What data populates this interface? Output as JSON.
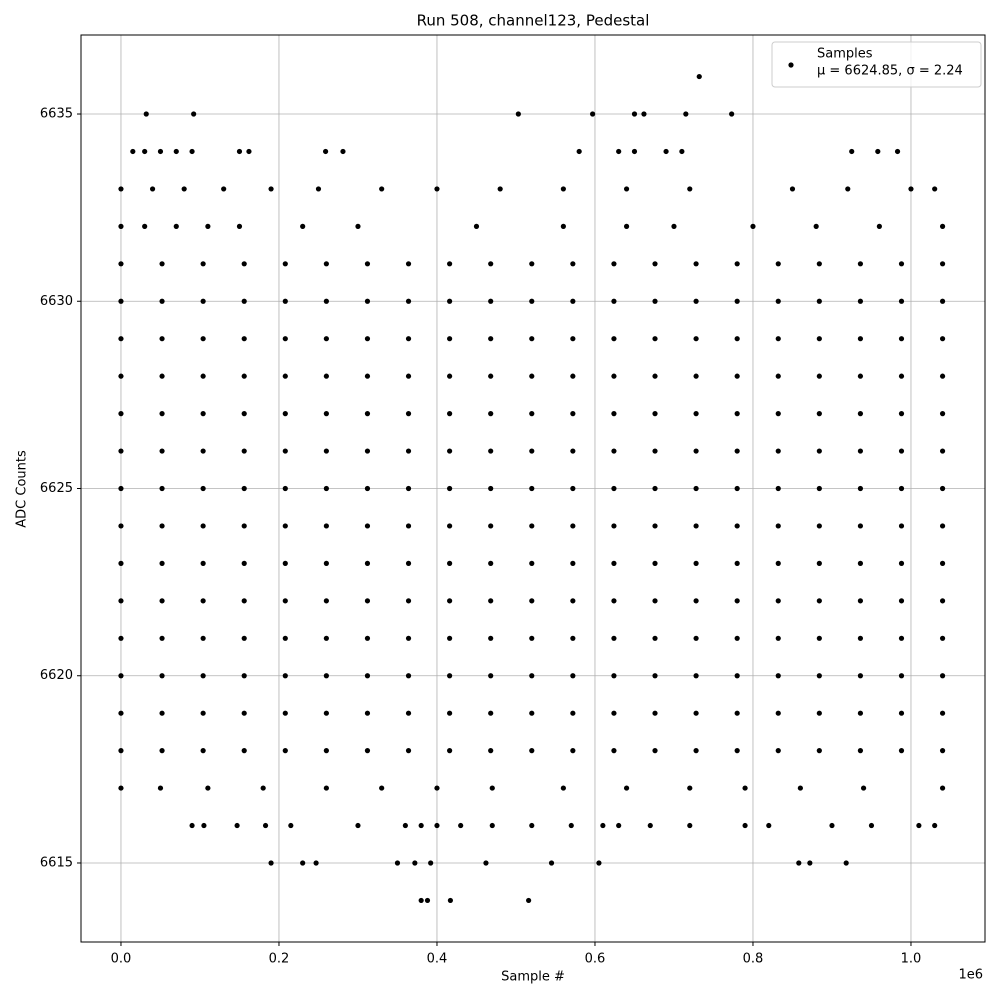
{
  "chart_data": {
    "type": "scatter",
    "title": "Run 508, channel123, Pedestal",
    "x_label": "Sample #",
    "y_label": "ADC Counts",
    "x_offset_label": "1e6",
    "legend_note": "μ = 6624.85, σ = 2.24",
    "legend": "upper right",
    "grid": true,
    "xlim": [
      -50600,
      1093700
    ],
    "ylim": [
      6612.89,
      6637.11
    ],
    "xticks": [
      {
        "value": 0,
        "label": "0.0"
      },
      {
        "value": 200000,
        "label": "0.2"
      },
      {
        "value": 400000,
        "label": "0.4"
      },
      {
        "value": 600000,
        "label": "0.6"
      },
      {
        "value": 800000,
        "label": "0.8"
      },
      {
        "value": 1000000,
        "label": "1.0"
      }
    ],
    "yticks": [
      6615,
      6620,
      6625,
      6630,
      6635
    ],
    "series": [
      {
        "name": "Samples",
        "color": "#000000",
        "x": [
          732000,
          32000,
          92000,
          503000,
          597000,
          650000,
          662000,
          715000,
          773000,
          15000,
          30000,
          50000,
          70000,
          90000,
          150000,
          162000,
          259000,
          281000,
          580000,
          630000,
          650000,
          690000,
          710000,
          925000,
          958000,
          983000,
          0,
          40000,
          80000,
          130000,
          190000,
          250000,
          330000,
          400000,
          480000,
          560000,
          640000,
          720000,
          850000,
          920000,
          1000000,
          1030000,
          0,
          30000,
          70000,
          110000,
          150000,
          230000,
          300000,
          450000,
          560000,
          640000,
          700000,
          800000,
          880000,
          960000,
          1040000,
          0,
          52000,
          104000,
          156000,
          208000,
          260000,
          312000,
          364000,
          416000,
          468000,
          520000,
          572000,
          624000,
          676000,
          728000,
          780000,
          832000,
          884000,
          936000,
          988000,
          1040000,
          0,
          52000,
          104000,
          156000,
          208000,
          260000,
          312000,
          364000,
          416000,
          468000,
          520000,
          572000,
          624000,
          676000,
          728000,
          780000,
          832000,
          884000,
          936000,
          988000,
          1040000,
          0,
          52000,
          104000,
          156000,
          208000,
          260000,
          312000,
          364000,
          416000,
          468000,
          520000,
          572000,
          624000,
          676000,
          728000,
          780000,
          832000,
          884000,
          936000,
          988000,
          1040000,
          0,
          52000,
          104000,
          156000,
          208000,
          260000,
          312000,
          364000,
          416000,
          468000,
          520000,
          572000,
          624000,
          676000,
          728000,
          780000,
          832000,
          884000,
          936000,
          988000,
          1040000,
          0,
          52000,
          104000,
          156000,
          208000,
          260000,
          312000,
          364000,
          416000,
          468000,
          520000,
          572000,
          624000,
          676000,
          728000,
          780000,
          832000,
          884000,
          936000,
          988000,
          1040000,
          0,
          52000,
          104000,
          156000,
          208000,
          260000,
          312000,
          364000,
          416000,
          468000,
          520000,
          572000,
          624000,
          676000,
          728000,
          780000,
          832000,
          884000,
          936000,
          988000,
          1040000,
          0,
          52000,
          104000,
          156000,
          208000,
          260000,
          312000,
          364000,
          416000,
          468000,
          520000,
          572000,
          624000,
          676000,
          728000,
          780000,
          832000,
          884000,
          936000,
          988000,
          1040000,
          0,
          52000,
          104000,
          156000,
          208000,
          260000,
          312000,
          364000,
          416000,
          468000,
          520000,
          572000,
          624000,
          676000,
          728000,
          780000,
          832000,
          884000,
          936000,
          988000,
          1040000,
          0,
          52000,
          104000,
          156000,
          208000,
          260000,
          312000,
          364000,
          416000,
          468000,
          520000,
          572000,
          624000,
          676000,
          728000,
          780000,
          832000,
          884000,
          936000,
          988000,
          1040000,
          0,
          52000,
          104000,
          156000,
          208000,
          260000,
          312000,
          364000,
          416000,
          468000,
          520000,
          572000,
          624000,
          676000,
          728000,
          780000,
          832000,
          884000,
          936000,
          988000,
          1040000,
          0,
          52000,
          104000,
          156000,
          208000,
          260000,
          312000,
          364000,
          416000,
          468000,
          520000,
          572000,
          624000,
          676000,
          728000,
          780000,
          832000,
          884000,
          936000,
          988000,
          1040000,
          0,
          52000,
          104000,
          156000,
          208000,
          260000,
          312000,
          364000,
          416000,
          468000,
          520000,
          572000,
          624000,
          676000,
          728000,
          780000,
          832000,
          884000,
          936000,
          988000,
          1040000,
          0,
          52000,
          104000,
          156000,
          208000,
          260000,
          312000,
          364000,
          416000,
          468000,
          520000,
          572000,
          624000,
          676000,
          728000,
          780000,
          832000,
          884000,
          936000,
          988000,
          1040000,
          0,
          52000,
          104000,
          156000,
          208000,
          260000,
          312000,
          364000,
          416000,
          468000,
          520000,
          572000,
          624000,
          676000,
          728000,
          780000,
          832000,
          884000,
          936000,
          988000,
          1040000,
          0,
          50000,
          110000,
          180000,
          260000,
          330000,
          400000,
          470000,
          560000,
          640000,
          720000,
          790000,
          860000,
          940000,
          1040000,
          90000,
          105000,
          147000,
          183000,
          215000,
          300000,
          360000,
          380000,
          400000,
          430000,
          470000,
          520000,
          570000,
          610000,
          630000,
          670000,
          720000,
          790000,
          820000,
          900000,
          950000,
          1010000,
          1030000,
          190000,
          230000,
          247000,
          350000,
          372000,
          392000,
          462000,
          545000,
          605000,
          858000,
          872000,
          918000,
          380000,
          388000,
          417000,
          516000
        ],
        "y": [
          6636,
          6635,
          6635,
          6635,
          6635,
          6635,
          6635,
          6635,
          6635,
          6634,
          6634,
          6634,
          6634,
          6634,
          6634,
          6634,
          6634,
          6634,
          6634,
          6634,
          6634,
          6634,
          6634,
          6634,
          6634,
          6634,
          6633,
          6633,
          6633,
          6633,
          6633,
          6633,
          6633,
          6633,
          6633,
          6633,
          6633,
          6633,
          6633,
          6633,
          6633,
          6633,
          6632,
          6632,
          6632,
          6632,
          6632,
          6632,
          6632,
          6632,
          6632,
          6632,
          6632,
          6632,
          6632,
          6632,
          6632,
          6631,
          6631,
          6631,
          6631,
          6631,
          6631,
          6631,
          6631,
          6631,
          6631,
          6631,
          6631,
          6631,
          6631,
          6631,
          6631,
          6631,
          6631,
          6631,
          6631,
          6631,
          6630,
          6630,
          6630,
          6630,
          6630,
          6630,
          6630,
          6630,
          6630,
          6630,
          6630,
          6630,
          6630,
          6630,
          6630,
          6630,
          6630,
          6630,
          6630,
          6630,
          6630,
          6629,
          6629,
          6629,
          6629,
          6629,
          6629,
          6629,
          6629,
          6629,
          6629,
          6629,
          6629,
          6629,
          6629,
          6629,
          6629,
          6629,
          6629,
          6629,
          6629,
          6629,
          6628,
          6628,
          6628,
          6628,
          6628,
          6628,
          6628,
          6628,
          6628,
          6628,
          6628,
          6628,
          6628,
          6628,
          6628,
          6628,
          6628,
          6628,
          6628,
          6628,
          6628,
          6627,
          6627,
          6627,
          6627,
          6627,
          6627,
          6627,
          6627,
          6627,
          6627,
          6627,
          6627,
          6627,
          6627,
          6627,
          6627,
          6627,
          6627,
          6627,
          6627,
          6627,
          6626,
          6626,
          6626,
          6626,
          6626,
          6626,
          6626,
          6626,
          6626,
          6626,
          6626,
          6626,
          6626,
          6626,
          6626,
          6626,
          6626,
          6626,
          6626,
          6626,
          6626,
          6625,
          6625,
          6625,
          6625,
          6625,
          6625,
          6625,
          6625,
          6625,
          6625,
          6625,
          6625,
          6625,
          6625,
          6625,
          6625,
          6625,
          6625,
          6625,
          6625,
          6625,
          6624,
          6624,
          6624,
          6624,
          6624,
          6624,
          6624,
          6624,
          6624,
          6624,
          6624,
          6624,
          6624,
          6624,
          6624,
          6624,
          6624,
          6624,
          6624,
          6624,
          6624,
          6623,
          6623,
          6623,
          6623,
          6623,
          6623,
          6623,
          6623,
          6623,
          6623,
          6623,
          6623,
          6623,
          6623,
          6623,
          6623,
          6623,
          6623,
          6623,
          6623,
          6623,
          6622,
          6622,
          6622,
          6622,
          6622,
          6622,
          6622,
          6622,
          6622,
          6622,
          6622,
          6622,
          6622,
          6622,
          6622,
          6622,
          6622,
          6622,
          6622,
          6622,
          6622,
          6621,
          6621,
          6621,
          6621,
          6621,
          6621,
          6621,
          6621,
          6621,
          6621,
          6621,
          6621,
          6621,
          6621,
          6621,
          6621,
          6621,
          6621,
          6621,
          6621,
          6621,
          6620,
          6620,
          6620,
          6620,
          6620,
          6620,
          6620,
          6620,
          6620,
          6620,
          6620,
          6620,
          6620,
          6620,
          6620,
          6620,
          6620,
          6620,
          6620,
          6620,
          6620,
          6619,
          6619,
          6619,
          6619,
          6619,
          6619,
          6619,
          6619,
          6619,
          6619,
          6619,
          6619,
          6619,
          6619,
          6619,
          6619,
          6619,
          6619,
          6619,
          6619,
          6619,
          6618,
          6618,
          6618,
          6618,
          6618,
          6618,
          6618,
          6618,
          6618,
          6618,
          6618,
          6618,
          6618,
          6618,
          6618,
          6618,
          6618,
          6618,
          6618,
          6618,
          6618,
          6617,
          6617,
          6617,
          6617,
          6617,
          6617,
          6617,
          6617,
          6617,
          6617,
          6617,
          6617,
          6617,
          6617,
          6617,
          6616,
          6616,
          6616,
          6616,
          6616,
          6616,
          6616,
          6616,
          6616,
          6616,
          6616,
          6616,
          6616,
          6616,
          6616,
          6616,
          6616,
          6616,
          6616,
          6616,
          6616,
          6616,
          6616,
          6615,
          6615,
          6615,
          6615,
          6615,
          6615,
          6615,
          6615,
          6615,
          6615,
          6615,
          6615,
          6614,
          6614,
          6614,
          6614
        ]
      }
    ]
  }
}
